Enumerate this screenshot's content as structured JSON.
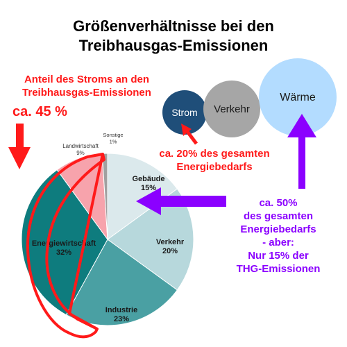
{
  "title_line1": "Größenverhältnisse bei den",
  "title_line2": "Treibhausgas-Emissionen",
  "annotation_left": {
    "line1": "Anteil des Stroms an den",
    "line2": "Treibhausgas-Emissionen",
    "value": "ca. 45 %"
  },
  "bubbles": [
    {
      "label": "Strom",
      "color": "#1f4e79",
      "text_color": "#ffffff"
    },
    {
      "label": "Verkehr",
      "color": "#a6a6a6",
      "text_color": "#1a1a1a"
    },
    {
      "label": "Wärme",
      "color": "#b3dcff",
      "text_color": "#1a1a1a"
    }
  ],
  "annotation_strom": {
    "line1": "ca. 20% des gesamten",
    "line2": "Energiebedarfs"
  },
  "annotation_waerme": {
    "lines": [
      "ca. 50%",
      "des gesamten",
      "Energiebedarfs",
      "- aber:",
      "Nur 15% der",
      "THG-Emissionen"
    ]
  },
  "colors": {
    "red": "#ff1a1a",
    "purple": "#8b00ff"
  },
  "chart_data": {
    "type": "pie",
    "slices": [
      {
        "label": "Gebäude",
        "value": 15,
        "value_label": "15%",
        "color": "#dbe9ec",
        "text_color": "#1a1a1a"
      },
      {
        "label": "Verkehr",
        "value": 20,
        "value_label": "20%",
        "color": "#b7d8dc",
        "text_color": "#1a1a1a"
      },
      {
        "label": "Industrie",
        "value": 23,
        "value_label": "23%",
        "color": "#4aa0a3",
        "text_color": "#1a1a1a"
      },
      {
        "label": "Energiewirtschaft",
        "value": 32,
        "value_label": "32%",
        "color": "#0e7c7e",
        "text_color": "#1a1a1a"
      },
      {
        "label": "Landwirtschaft",
        "value": 9,
        "value_label": "9%",
        "color": "#f7a3ac",
        "text_color": "#333333"
      },
      {
        "label": "Sonstige",
        "value": 1,
        "value_label": "1%",
        "color": "#a0a0a0",
        "text_color": "#333333"
      }
    ]
  }
}
